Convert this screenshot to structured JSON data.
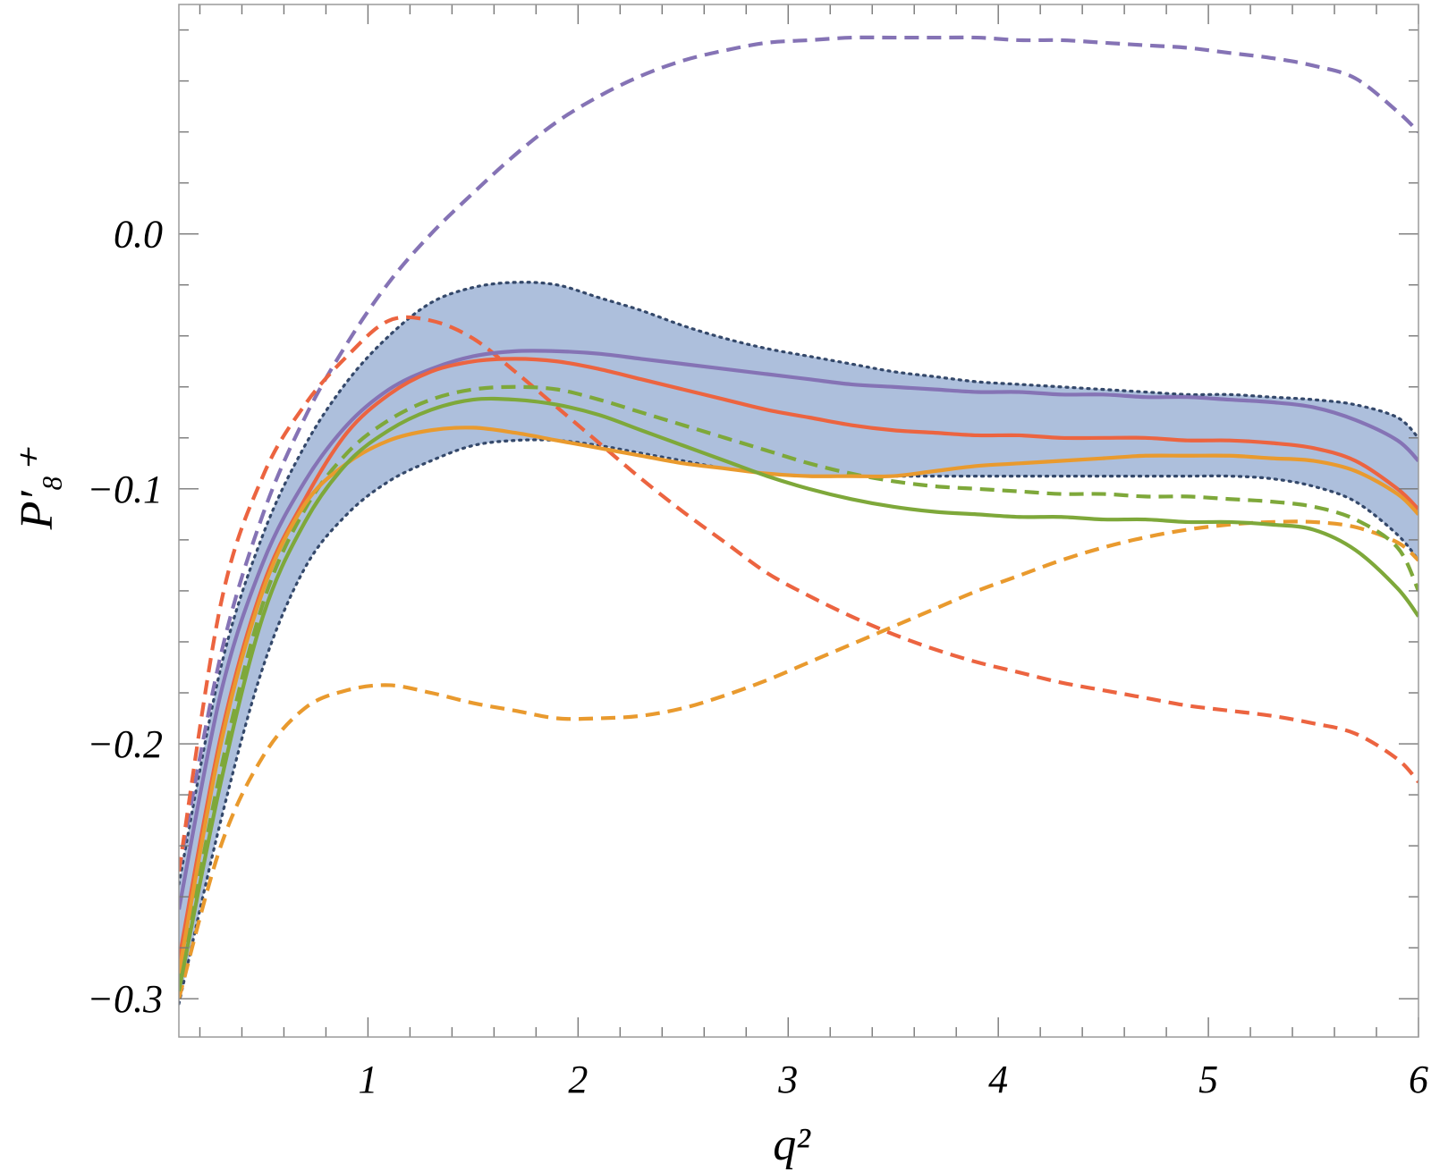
{
  "chart_data": {
    "type": "line",
    "title": "",
    "xlabel": "q²",
    "ylabel": "P′₈⁺",
    "xlim": [
      0.1,
      6.0
    ],
    "ylim": [
      -0.315,
      0.09
    ],
    "grid": false,
    "legend": "none",
    "x_ticks": [
      {
        "value": 1,
        "label": "1"
      },
      {
        "value": 2,
        "label": "2"
      },
      {
        "value": 3,
        "label": "3"
      },
      {
        "value": 4,
        "label": "4"
      },
      {
        "value": 5,
        "label": "5"
      },
      {
        "value": 6,
        "label": "6"
      }
    ],
    "y_ticks": [
      {
        "value": 0.0,
        "label": "0.0"
      },
      {
        "value": -0.1,
        "label": "−0.1"
      },
      {
        "value": -0.2,
        "label": "−0.2"
      },
      {
        "value": -0.3,
        "label": "−0.3"
      }
    ],
    "band": {
      "color": "#adbfdc",
      "edge_color": "#34486a",
      "x": [
        0.1,
        0.3,
        0.5,
        0.7,
        0.9,
        1.1,
        1.3,
        1.5,
        1.7,
        1.9,
        2.1,
        2.3,
        2.5,
        2.7,
        2.9,
        3.1,
        3.3,
        3.5,
        3.7,
        3.9,
        4.1,
        4.3,
        4.5,
        4.7,
        4.9,
        5.1,
        5.3,
        5.5,
        5.7,
        5.9,
        6.0
      ],
      "upper": [
        -0.255,
        -0.17,
        -0.118,
        -0.083,
        -0.058,
        -0.04,
        -0.027,
        -0.021,
        -0.019,
        -0.02,
        -0.025,
        -0.03,
        -0.036,
        -0.041,
        -0.045,
        -0.048,
        -0.051,
        -0.054,
        -0.056,
        -0.058,
        -0.059,
        -0.06,
        -0.061,
        -0.062,
        -0.063,
        -0.063,
        -0.064,
        -0.065,
        -0.067,
        -0.072,
        -0.08
      ],
      "lower": [
        -0.302,
        -0.23,
        -0.17,
        -0.131,
        -0.11,
        -0.097,
        -0.089,
        -0.083,
        -0.081,
        -0.081,
        -0.083,
        -0.086,
        -0.089,
        -0.092,
        -0.094,
        -0.095,
        -0.095,
        -0.095,
        -0.095,
        -0.095,
        -0.095,
        -0.095,
        -0.095,
        -0.095,
        -0.095,
        -0.095,
        -0.096,
        -0.099,
        -0.105,
        -0.118,
        -0.128
      ]
    },
    "series": [
      {
        "color": "#8573b5",
        "style": "solid",
        "x": [
          0.1,
          0.3,
          0.5,
          0.7,
          0.9,
          1.1,
          1.3,
          1.5,
          1.7,
          1.9,
          2.1,
          2.3,
          2.5,
          2.7,
          2.9,
          3.1,
          3.3,
          3.5,
          3.7,
          3.9,
          4.1,
          4.3,
          4.5,
          4.7,
          4.9,
          5.1,
          5.3,
          5.5,
          5.7,
          5.9,
          6.0
        ],
        "y": [
          -0.265,
          -0.18,
          -0.129,
          -0.097,
          -0.075,
          -0.061,
          -0.053,
          -0.048,
          -0.046,
          -0.046,
          -0.047,
          -0.049,
          -0.051,
          -0.053,
          -0.055,
          -0.057,
          -0.059,
          -0.06,
          -0.061,
          -0.062,
          -0.062,
          -0.063,
          -0.063,
          -0.064,
          -0.064,
          -0.065,
          -0.066,
          -0.068,
          -0.073,
          -0.081,
          -0.089
        ]
      },
      {
        "color": "#ec6440",
        "style": "solid",
        "x": [
          0.1,
          0.3,
          0.5,
          0.7,
          0.9,
          1.1,
          1.3,
          1.5,
          1.7,
          1.9,
          2.1,
          2.3,
          2.5,
          2.7,
          2.9,
          3.1,
          3.3,
          3.5,
          3.7,
          3.9,
          4.1,
          4.3,
          4.5,
          4.7,
          4.9,
          5.1,
          5.3,
          5.5,
          5.7,
          5.9,
          6.0
        ],
        "y": [
          -0.285,
          -0.197,
          -0.138,
          -0.104,
          -0.078,
          -0.063,
          -0.054,
          -0.05,
          -0.049,
          -0.05,
          -0.053,
          -0.057,
          -0.061,
          -0.065,
          -0.069,
          -0.072,
          -0.075,
          -0.077,
          -0.078,
          -0.079,
          -0.079,
          -0.08,
          -0.08,
          -0.08,
          -0.081,
          -0.081,
          -0.082,
          -0.084,
          -0.089,
          -0.1,
          -0.108
        ]
      },
      {
        "color": "#e99a2e",
        "style": "solid",
        "x": [
          0.1,
          0.3,
          0.5,
          0.7,
          0.9,
          1.1,
          1.3,
          1.5,
          1.7,
          1.9,
          2.1,
          2.3,
          2.5,
          2.7,
          2.9,
          3.1,
          3.3,
          3.5,
          3.7,
          3.9,
          4.1,
          4.3,
          4.5,
          4.7,
          4.9,
          5.1,
          5.3,
          5.5,
          5.7,
          5.9,
          6.0
        ],
        "y": [
          -0.29,
          -0.2,
          -0.14,
          -0.106,
          -0.09,
          -0.081,
          -0.077,
          -0.076,
          -0.078,
          -0.081,
          -0.084,
          -0.087,
          -0.09,
          -0.092,
          -0.094,
          -0.095,
          -0.095,
          -0.095,
          -0.093,
          -0.091,
          -0.09,
          -0.089,
          -0.088,
          -0.087,
          -0.087,
          -0.087,
          -0.088,
          -0.089,
          -0.093,
          -0.102,
          -0.11
        ]
      },
      {
        "color": "#7ea83a",
        "style": "solid",
        "x": [
          0.1,
          0.3,
          0.5,
          0.7,
          0.9,
          1.1,
          1.3,
          1.5,
          1.7,
          1.9,
          2.1,
          2.3,
          2.5,
          2.7,
          2.9,
          3.1,
          3.3,
          3.5,
          3.7,
          3.9,
          4.1,
          4.3,
          4.5,
          4.7,
          4.9,
          5.1,
          5.3,
          5.5,
          5.7,
          5.9,
          6.0
        ],
        "y": [
          -0.297,
          -0.215,
          -0.15,
          -0.113,
          -0.09,
          -0.077,
          -0.069,
          -0.065,
          -0.065,
          -0.067,
          -0.071,
          -0.077,
          -0.083,
          -0.089,
          -0.095,
          -0.1,
          -0.104,
          -0.107,
          -0.109,
          -0.11,
          -0.111,
          -0.111,
          -0.112,
          -0.112,
          -0.113,
          -0.113,
          -0.114,
          -0.116,
          -0.124,
          -0.139,
          -0.15
        ]
      },
      {
        "color": "#8573b5",
        "style": "dashed",
        "x": [
          0.1,
          0.3,
          0.5,
          0.7,
          0.9,
          1.1,
          1.3,
          1.5,
          1.7,
          1.9,
          2.1,
          2.3,
          2.5,
          2.7,
          2.9,
          3.1,
          3.3,
          3.5,
          3.7,
          3.9,
          4.1,
          4.3,
          4.5,
          4.7,
          4.9,
          5.1,
          5.3,
          5.5,
          5.7,
          5.9,
          6.0
        ],
        "y": [
          -0.25,
          -0.165,
          -0.11,
          -0.072,
          -0.043,
          -0.019,
          0.0,
          0.016,
          0.031,
          0.044,
          0.054,
          0.062,
          0.068,
          0.072,
          0.075,
          0.076,
          0.077,
          0.077,
          0.077,
          0.077,
          0.076,
          0.076,
          0.075,
          0.074,
          0.073,
          0.071,
          0.069,
          0.066,
          0.061,
          0.048,
          0.04
        ]
      },
      {
        "color": "#ec6440",
        "style": "dashed",
        "x": [
          0.1,
          0.3,
          0.5,
          0.7,
          0.9,
          1.1,
          1.3,
          1.5,
          1.7,
          1.9,
          2.1,
          2.3,
          2.5,
          2.7,
          2.9,
          3.1,
          3.3,
          3.5,
          3.7,
          3.9,
          4.1,
          4.3,
          4.5,
          4.7,
          4.9,
          5.1,
          5.3,
          5.5,
          5.7,
          5.9,
          6.0
        ],
        "y": [
          -0.25,
          -0.145,
          -0.095,
          -0.067,
          -0.048,
          -0.034,
          -0.034,
          -0.041,
          -0.054,
          -0.068,
          -0.082,
          -0.096,
          -0.109,
          -0.121,
          -0.133,
          -0.142,
          -0.15,
          -0.157,
          -0.163,
          -0.168,
          -0.172,
          -0.176,
          -0.179,
          -0.182,
          -0.185,
          -0.187,
          -0.189,
          -0.192,
          -0.196,
          -0.206,
          -0.215
        ]
      },
      {
        "color": "#e99a2e",
        "style": "dashed",
        "x": [
          0.1,
          0.3,
          0.5,
          0.7,
          0.9,
          1.1,
          1.3,
          1.5,
          1.7,
          1.9,
          2.1,
          2.3,
          2.5,
          2.7,
          2.9,
          3.1,
          3.3,
          3.5,
          3.7,
          3.9,
          4.1,
          4.3,
          4.5,
          4.7,
          4.9,
          5.1,
          5.3,
          5.5,
          5.7,
          5.9,
          6.0
        ],
        "y": [
          -0.3,
          -0.24,
          -0.205,
          -0.186,
          -0.179,
          -0.177,
          -0.18,
          -0.184,
          -0.187,
          -0.19,
          -0.19,
          -0.189,
          -0.186,
          -0.181,
          -0.175,
          -0.168,
          -0.161,
          -0.154,
          -0.147,
          -0.14,
          -0.134,
          -0.128,
          -0.123,
          -0.119,
          -0.116,
          -0.114,
          -0.113,
          -0.113,
          -0.115,
          -0.121,
          -0.128
        ]
      },
      {
        "color": "#7ea83a",
        "style": "dashed",
        "x": [
          0.1,
          0.3,
          0.5,
          0.7,
          0.9,
          1.1,
          1.3,
          1.5,
          1.7,
          1.9,
          2.1,
          2.3,
          2.5,
          2.7,
          2.9,
          3.1,
          3.3,
          3.5,
          3.7,
          3.9,
          4.1,
          4.3,
          4.5,
          4.7,
          4.9,
          5.1,
          5.3,
          5.5,
          5.7,
          5.9,
          6.0
        ],
        "y": [
          -0.295,
          -0.21,
          -0.145,
          -0.108,
          -0.086,
          -0.073,
          -0.065,
          -0.061,
          -0.06,
          -0.061,
          -0.065,
          -0.07,
          -0.075,
          -0.08,
          -0.085,
          -0.09,
          -0.094,
          -0.097,
          -0.099,
          -0.1,
          -0.101,
          -0.102,
          -0.102,
          -0.103,
          -0.103,
          -0.104,
          -0.105,
          -0.107,
          -0.112,
          -0.123,
          -0.14
        ]
      }
    ]
  }
}
